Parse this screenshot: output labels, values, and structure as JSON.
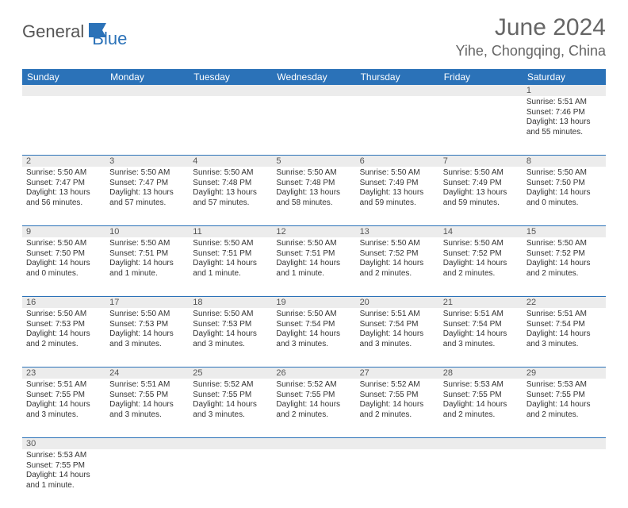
{
  "brand": {
    "text1": "General",
    "text2": "Blue"
  },
  "title": "June 2024",
  "location": "Yihe, Chongqing, China",
  "colors": {
    "header_bg": "#2b72b8",
    "header_text": "#ffffff",
    "number_bg": "#ececec",
    "row_border": "#2b72b8",
    "title_color": "#666666",
    "body_text": "#333333"
  },
  "weekdays": [
    "Sunday",
    "Monday",
    "Tuesday",
    "Wednesday",
    "Thursday",
    "Friday",
    "Saturday"
  ],
  "weeks": [
    [
      null,
      null,
      null,
      null,
      null,
      null,
      {
        "n": "1",
        "sr": "Sunrise: 5:51 AM",
        "ss": "Sunset: 7:46 PM",
        "dl": "Daylight: 13 hours and 55 minutes."
      }
    ],
    [
      {
        "n": "2",
        "sr": "Sunrise: 5:50 AM",
        "ss": "Sunset: 7:47 PM",
        "dl": "Daylight: 13 hours and 56 minutes."
      },
      {
        "n": "3",
        "sr": "Sunrise: 5:50 AM",
        "ss": "Sunset: 7:47 PM",
        "dl": "Daylight: 13 hours and 57 minutes."
      },
      {
        "n": "4",
        "sr": "Sunrise: 5:50 AM",
        "ss": "Sunset: 7:48 PM",
        "dl": "Daylight: 13 hours and 57 minutes."
      },
      {
        "n": "5",
        "sr": "Sunrise: 5:50 AM",
        "ss": "Sunset: 7:48 PM",
        "dl": "Daylight: 13 hours and 58 minutes."
      },
      {
        "n": "6",
        "sr": "Sunrise: 5:50 AM",
        "ss": "Sunset: 7:49 PM",
        "dl": "Daylight: 13 hours and 59 minutes."
      },
      {
        "n": "7",
        "sr": "Sunrise: 5:50 AM",
        "ss": "Sunset: 7:49 PM",
        "dl": "Daylight: 13 hours and 59 minutes."
      },
      {
        "n": "8",
        "sr": "Sunrise: 5:50 AM",
        "ss": "Sunset: 7:50 PM",
        "dl": "Daylight: 14 hours and 0 minutes."
      }
    ],
    [
      {
        "n": "9",
        "sr": "Sunrise: 5:50 AM",
        "ss": "Sunset: 7:50 PM",
        "dl": "Daylight: 14 hours and 0 minutes."
      },
      {
        "n": "10",
        "sr": "Sunrise: 5:50 AM",
        "ss": "Sunset: 7:51 PM",
        "dl": "Daylight: 14 hours and 1 minute."
      },
      {
        "n": "11",
        "sr": "Sunrise: 5:50 AM",
        "ss": "Sunset: 7:51 PM",
        "dl": "Daylight: 14 hours and 1 minute."
      },
      {
        "n": "12",
        "sr": "Sunrise: 5:50 AM",
        "ss": "Sunset: 7:51 PM",
        "dl": "Daylight: 14 hours and 1 minute."
      },
      {
        "n": "13",
        "sr": "Sunrise: 5:50 AM",
        "ss": "Sunset: 7:52 PM",
        "dl": "Daylight: 14 hours and 2 minutes."
      },
      {
        "n": "14",
        "sr": "Sunrise: 5:50 AM",
        "ss": "Sunset: 7:52 PM",
        "dl": "Daylight: 14 hours and 2 minutes."
      },
      {
        "n": "15",
        "sr": "Sunrise: 5:50 AM",
        "ss": "Sunset: 7:52 PM",
        "dl": "Daylight: 14 hours and 2 minutes."
      }
    ],
    [
      {
        "n": "16",
        "sr": "Sunrise: 5:50 AM",
        "ss": "Sunset: 7:53 PM",
        "dl": "Daylight: 14 hours and 2 minutes."
      },
      {
        "n": "17",
        "sr": "Sunrise: 5:50 AM",
        "ss": "Sunset: 7:53 PM",
        "dl": "Daylight: 14 hours and 3 minutes."
      },
      {
        "n": "18",
        "sr": "Sunrise: 5:50 AM",
        "ss": "Sunset: 7:53 PM",
        "dl": "Daylight: 14 hours and 3 minutes."
      },
      {
        "n": "19",
        "sr": "Sunrise: 5:50 AM",
        "ss": "Sunset: 7:54 PM",
        "dl": "Daylight: 14 hours and 3 minutes."
      },
      {
        "n": "20",
        "sr": "Sunrise: 5:51 AM",
        "ss": "Sunset: 7:54 PM",
        "dl": "Daylight: 14 hours and 3 minutes."
      },
      {
        "n": "21",
        "sr": "Sunrise: 5:51 AM",
        "ss": "Sunset: 7:54 PM",
        "dl": "Daylight: 14 hours and 3 minutes."
      },
      {
        "n": "22",
        "sr": "Sunrise: 5:51 AM",
        "ss": "Sunset: 7:54 PM",
        "dl": "Daylight: 14 hours and 3 minutes."
      }
    ],
    [
      {
        "n": "23",
        "sr": "Sunrise: 5:51 AM",
        "ss": "Sunset: 7:55 PM",
        "dl": "Daylight: 14 hours and 3 minutes."
      },
      {
        "n": "24",
        "sr": "Sunrise: 5:51 AM",
        "ss": "Sunset: 7:55 PM",
        "dl": "Daylight: 14 hours and 3 minutes."
      },
      {
        "n": "25",
        "sr": "Sunrise: 5:52 AM",
        "ss": "Sunset: 7:55 PM",
        "dl": "Daylight: 14 hours and 3 minutes."
      },
      {
        "n": "26",
        "sr": "Sunrise: 5:52 AM",
        "ss": "Sunset: 7:55 PM",
        "dl": "Daylight: 14 hours and 2 minutes."
      },
      {
        "n": "27",
        "sr": "Sunrise: 5:52 AM",
        "ss": "Sunset: 7:55 PM",
        "dl": "Daylight: 14 hours and 2 minutes."
      },
      {
        "n": "28",
        "sr": "Sunrise: 5:53 AM",
        "ss": "Sunset: 7:55 PM",
        "dl": "Daylight: 14 hours and 2 minutes."
      },
      {
        "n": "29",
        "sr": "Sunrise: 5:53 AM",
        "ss": "Sunset: 7:55 PM",
        "dl": "Daylight: 14 hours and 2 minutes."
      }
    ],
    [
      {
        "n": "30",
        "sr": "Sunrise: 5:53 AM",
        "ss": "Sunset: 7:55 PM",
        "dl": "Daylight: 14 hours and 1 minute."
      },
      null,
      null,
      null,
      null,
      null,
      null
    ]
  ]
}
